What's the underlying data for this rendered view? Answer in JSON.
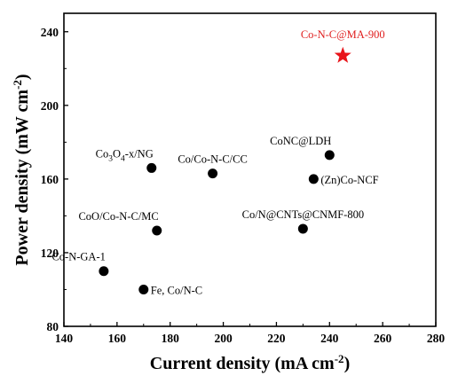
{
  "chart_data": {
    "type": "scatter",
    "xlabel": "Current density (mA cm",
    "xlabel_sup": "-2",
    "xlabel_end": ")",
    "ylabel": "Power density (mW cm",
    "ylabel_sup": "-2",
    "ylabel_end": ")",
    "xlim": [
      140,
      280
    ],
    "ylim": [
      80,
      250
    ],
    "xticks": [
      140,
      160,
      180,
      200,
      220,
      240,
      260,
      280
    ],
    "yticks": [
      80,
      120,
      160,
      200,
      240
    ],
    "grid": false,
    "points": [
      {
        "label": "Co-N-GA-1",
        "x": 155,
        "y": 110,
        "anchor": "above-left"
      },
      {
        "label": "Fe, Co/N-C",
        "x": 170,
        "y": 100,
        "anchor": "right"
      },
      {
        "label": "Co3O4-x/NG",
        "x": 173,
        "y": 166,
        "anchor": "above-left",
        "rich": [
          [
            "Co",
            ""
          ],
          [
            "3",
            "sub"
          ],
          [
            "O",
            ""
          ],
          [
            "4",
            "sub"
          ],
          [
            "-x/NG",
            ""
          ]
        ]
      },
      {
        "label": "CoO/Co-N-C/MC",
        "x": 175,
        "y": 132,
        "anchor": "above-left"
      },
      {
        "label": "Co/Co-N-C/CC",
        "x": 196,
        "y": 163,
        "anchor": "above"
      },
      {
        "label": "Co/N@CNTs@CNMF-800",
        "x": 230,
        "y": 133,
        "anchor": "above"
      },
      {
        "label": "CoNC@LDH",
        "x": 240,
        "y": 173,
        "anchor": "above-left"
      },
      {
        "label": "(Zn)Co-NCF",
        "x": 234,
        "y": 160,
        "anchor": "right"
      }
    ],
    "highlight": {
      "label": "Co-N-C@MA-900",
      "x": 245,
      "y": 227,
      "color": "#e8141a",
      "marker": "star"
    }
  }
}
